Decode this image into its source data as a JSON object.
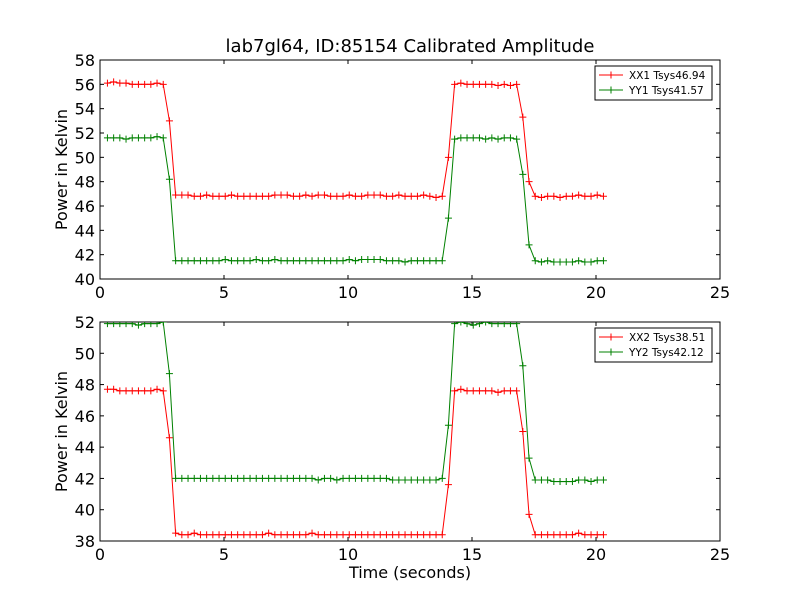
{
  "figure": {
    "title": "lab7gl64, ID:85154 Calibrated Amplitude",
    "xlabel": "Time (seconds)"
  },
  "colors": {
    "xx": "#ff0000",
    "yy": "#008000",
    "axes": "#000000"
  },
  "chart_data": [
    {
      "type": "line",
      "title": "lab7gl64, ID:85154 Calibrated Amplitude",
      "xlabel": "",
      "ylabel": "Power in Kelvin",
      "xlim": [
        0,
        25
      ],
      "ylim": [
        40,
        58
      ],
      "xticks": [
        0,
        5,
        10,
        15,
        20,
        25
      ],
      "yticks": [
        40,
        42,
        44,
        46,
        48,
        50,
        52,
        54,
        56,
        58
      ],
      "grid": false,
      "legend_position": "top-right",
      "x": [
        0.3,
        0.55,
        0.8,
        1.05,
        1.3,
        1.55,
        1.8,
        2.05,
        2.3,
        2.55,
        2.8,
        3.05,
        3.3,
        3.55,
        3.8,
        4.05,
        4.3,
        4.55,
        4.8,
        5.05,
        5.3,
        5.55,
        5.8,
        6.05,
        6.3,
        6.55,
        6.8,
        7.05,
        7.3,
        7.55,
        7.8,
        8.05,
        8.3,
        8.55,
        8.8,
        9.05,
        9.3,
        9.55,
        9.8,
        10.05,
        10.3,
        10.55,
        10.8,
        11.05,
        11.3,
        11.55,
        11.8,
        12.05,
        12.3,
        12.55,
        12.8,
        13.05,
        13.3,
        13.55,
        13.8,
        14.05,
        14.3,
        14.55,
        14.8,
        15.05,
        15.3,
        15.55,
        15.8,
        16.05,
        16.3,
        16.55,
        16.8,
        17.05,
        17.3,
        17.55,
        17.8,
        18.05,
        18.3,
        18.55,
        18.8,
        19.05,
        19.3,
        19.55,
        19.8,
        20.05,
        20.3
      ],
      "series": [
        {
          "name": "XX1 Tsys46.94",
          "color": "#ff0000",
          "values": [
            56.1,
            56.2,
            56.1,
            56.1,
            56.0,
            56.0,
            56.0,
            56.0,
            56.1,
            56.0,
            53.0,
            46.9,
            46.9,
            46.9,
            46.8,
            46.8,
            46.9,
            46.8,
            46.8,
            46.8,
            46.9,
            46.8,
            46.8,
            46.8,
            46.8,
            46.8,
            46.8,
            46.9,
            46.9,
            46.9,
            46.8,
            46.8,
            46.9,
            46.8,
            46.9,
            46.9,
            46.8,
            46.8,
            46.8,
            46.9,
            46.8,
            46.8,
            46.9,
            46.9,
            46.9,
            46.8,
            46.8,
            46.9,
            46.8,
            46.8,
            46.8,
            46.9,
            46.8,
            46.7,
            46.8,
            50.0,
            56.0,
            56.1,
            56.0,
            56.0,
            56.0,
            56.0,
            56.0,
            55.9,
            56.0,
            55.9,
            56.0,
            53.3,
            48.0,
            46.8,
            46.7,
            46.8,
            46.8,
            46.7,
            46.8,
            46.8,
            46.9,
            46.8,
            46.8,
            46.9,
            46.8
          ]
        },
        {
          "name": "YY1 Tsys41.57",
          "color": "#008000",
          "values": [
            51.6,
            51.6,
            51.6,
            51.5,
            51.6,
            51.6,
            51.6,
            51.6,
            51.7,
            51.6,
            48.2,
            41.5,
            41.5,
            41.5,
            41.5,
            41.5,
            41.5,
            41.5,
            41.5,
            41.6,
            41.5,
            41.5,
            41.5,
            41.5,
            41.6,
            41.5,
            41.5,
            41.6,
            41.5,
            41.5,
            41.5,
            41.5,
            41.5,
            41.5,
            41.5,
            41.5,
            41.5,
            41.5,
            41.5,
            41.6,
            41.5,
            41.6,
            41.6,
            41.6,
            41.6,
            41.5,
            41.5,
            41.5,
            41.4,
            41.5,
            41.5,
            41.5,
            41.5,
            41.5,
            41.5,
            45.0,
            51.5,
            51.6,
            51.6,
            51.6,
            51.6,
            51.5,
            51.6,
            51.5,
            51.6,
            51.6,
            51.5,
            48.6,
            42.8,
            41.5,
            41.4,
            41.5,
            41.4,
            41.4,
            41.4,
            41.4,
            41.5,
            41.4,
            41.4,
            41.5,
            41.5
          ]
        }
      ]
    },
    {
      "type": "line",
      "title": "",
      "xlabel": "Time (seconds)",
      "ylabel": "Power in Kelvin",
      "xlim": [
        0,
        25
      ],
      "ylim": [
        38,
        52
      ],
      "xticks": [
        0,
        5,
        10,
        15,
        20,
        25
      ],
      "yticks": [
        38,
        40,
        42,
        44,
        46,
        48,
        50,
        52
      ],
      "grid": false,
      "legend_position": "top-right",
      "x": [
        0.3,
        0.55,
        0.8,
        1.05,
        1.3,
        1.55,
        1.8,
        2.05,
        2.3,
        2.55,
        2.8,
        3.05,
        3.3,
        3.55,
        3.8,
        4.05,
        4.3,
        4.55,
        4.8,
        5.05,
        5.3,
        5.55,
        5.8,
        6.05,
        6.3,
        6.55,
        6.8,
        7.05,
        7.3,
        7.55,
        7.8,
        8.05,
        8.3,
        8.55,
        8.8,
        9.05,
        9.3,
        9.55,
        9.8,
        10.05,
        10.3,
        10.55,
        10.8,
        11.05,
        11.3,
        11.55,
        11.8,
        12.05,
        12.3,
        12.55,
        12.8,
        13.05,
        13.3,
        13.55,
        13.8,
        14.05,
        14.3,
        14.55,
        14.8,
        15.05,
        15.3,
        15.55,
        15.8,
        16.05,
        16.3,
        16.55,
        16.8,
        17.05,
        17.3,
        17.55,
        17.8,
        18.05,
        18.3,
        18.55,
        18.8,
        19.05,
        19.3,
        19.55,
        19.8,
        20.05,
        20.3
      ],
      "series": [
        {
          "name": "XX2 Tsys38.51",
          "color": "#ff0000",
          "values": [
            47.7,
            47.7,
            47.6,
            47.6,
            47.6,
            47.6,
            47.6,
            47.6,
            47.7,
            47.6,
            44.6,
            38.5,
            38.4,
            38.4,
            38.5,
            38.4,
            38.4,
            38.4,
            38.4,
            38.4,
            38.4,
            38.4,
            38.4,
            38.4,
            38.4,
            38.4,
            38.5,
            38.4,
            38.4,
            38.4,
            38.4,
            38.4,
            38.4,
            38.5,
            38.4,
            38.4,
            38.4,
            38.4,
            38.4,
            38.4,
            38.4,
            38.4,
            38.4,
            38.4,
            38.4,
            38.4,
            38.4,
            38.4,
            38.4,
            38.4,
            38.4,
            38.4,
            38.4,
            38.4,
            38.4,
            41.6,
            47.6,
            47.7,
            47.6,
            47.6,
            47.6,
            47.6,
            47.6,
            47.5,
            47.6,
            47.6,
            47.6,
            45.0,
            39.7,
            38.4,
            38.4,
            38.4,
            38.4,
            38.4,
            38.4,
            38.4,
            38.5,
            38.4,
            38.4,
            38.4,
            38.4
          ]
        },
        {
          "name": "YY2 Tsys42.12",
          "color": "#008000",
          "values": [
            51.9,
            51.9,
            51.9,
            51.9,
            51.9,
            51.8,
            51.9,
            51.9,
            51.9,
            52.0,
            48.7,
            42.0,
            42.0,
            42.0,
            42.0,
            42.0,
            42.0,
            42.0,
            42.0,
            42.0,
            42.0,
            42.0,
            42.0,
            42.0,
            42.0,
            42.0,
            42.0,
            42.0,
            42.0,
            42.0,
            42.0,
            42.0,
            42.0,
            42.0,
            41.9,
            42.0,
            42.0,
            41.9,
            42.0,
            42.0,
            42.0,
            42.0,
            42.0,
            42.0,
            42.0,
            42.0,
            41.9,
            41.9,
            41.9,
            41.9,
            41.9,
            41.9,
            41.9,
            41.9,
            42.0,
            45.4,
            51.9,
            52.0,
            51.9,
            51.8,
            51.9,
            52.0,
            51.9,
            51.9,
            51.9,
            51.9,
            51.9,
            49.2,
            43.3,
            41.9,
            41.9,
            41.9,
            41.8,
            41.8,
            41.8,
            41.8,
            41.9,
            41.9,
            41.8,
            41.9,
            41.9
          ]
        }
      ]
    }
  ]
}
